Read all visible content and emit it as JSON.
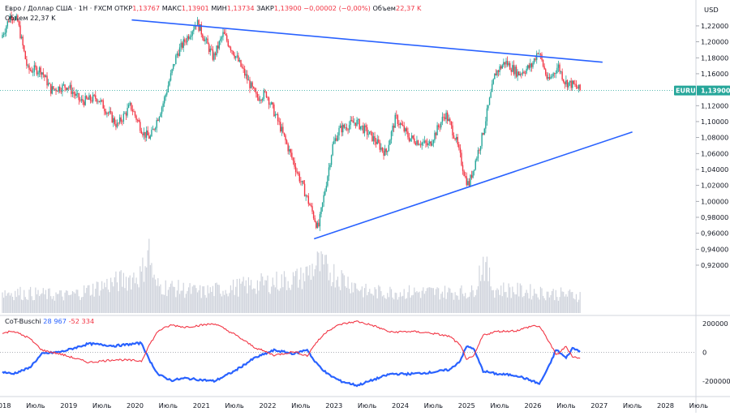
{
  "header": {
    "symbol_line": "Евро / Доллар США · 1Н · FXCM",
    "ohlc": {
      "open_label": "ОТКР",
      "open": "1,13767",
      "high_label": "МАКС",
      "high": "1,13901",
      "low_label": "МИН",
      "low": "1,13734",
      "close_label": "ЗАКР",
      "close": "1,13900",
      "change": "−0,00002 (−0,00%)",
      "volume_label": "Объем",
      "volume": "22,37 K"
    },
    "volume_row": "Объем  22,37 K"
  },
  "price_axis": {
    "currency": "USD",
    "ticks": [
      "1,22000",
      "1,20000",
      "1,18000",
      "1,16000",
      "1,14000",
      "1,12000",
      "1,10000",
      "1,08000",
      "1,06000",
      "1,04000",
      "1,02000",
      "1,00000",
      "0,98000",
      "0,96000",
      "0,94000",
      "0,92000"
    ],
    "last_symbol": "EURUSD",
    "last_price": "1,13900"
  },
  "indicator": {
    "name": "CoT-Buschi",
    "value_blue": "28 967",
    "value_red": "-52 334",
    "ticks": [
      "200000",
      "0",
      "-200000"
    ]
  },
  "time_axis": [
    "2018",
    "Июль",
    "2019",
    "Июль",
    "2020",
    "Июль",
    "2021",
    "Июль",
    "2022",
    "Июль",
    "2023",
    "Июль",
    "2024",
    "Июль",
    "2025",
    "Июль",
    "2026",
    "Июль",
    "2027",
    "Июль",
    "2028",
    "Июль"
  ],
  "colors": {
    "up": "#26a69a",
    "down": "#f23645",
    "trendline": "#2962ff",
    "cot_blue": "#2962ff",
    "cot_red": "#f23645",
    "price_tag": "#26a69a"
  },
  "chart_data": [
    {
      "type": "candlestick",
      "title": "Евро / Доллар США · 1Н · FXCM",
      "ylim": [
        0.905,
        1.235
      ],
      "x_ticks": [
        "2018",
        "Июль",
        "2019",
        "Июль",
        "2020",
        "Июль",
        "2021",
        "Июль",
        "2022",
        "Июль",
        "2023",
        "Июль",
        "2024",
        "Июль",
        "2025",
        "Июль",
        "2026",
        "Июль",
        "2027",
        "Июль",
        "2028",
        "Июль"
      ],
      "price_path": [
        [
          2018.0,
          1.205
        ],
        [
          2018.15,
          1.235
        ],
        [
          2018.25,
          1.225
        ],
        [
          2018.4,
          1.165
        ],
        [
          2018.6,
          1.165
        ],
        [
          2018.75,
          1.14
        ],
        [
          2019.0,
          1.145
        ],
        [
          2019.2,
          1.125
        ],
        [
          2019.45,
          1.13
        ],
        [
          2019.75,
          1.095
        ],
        [
          2019.95,
          1.12
        ],
        [
          2020.15,
          1.085
        ],
        [
          2020.25,
          1.08
        ],
        [
          2020.45,
          1.125
        ],
        [
          2020.65,
          1.185
        ],
        [
          2020.95,
          1.225
        ],
        [
          2021.2,
          1.18
        ],
        [
          2021.35,
          1.21
        ],
        [
          2021.55,
          1.18
        ],
        [
          2021.85,
          1.13
        ],
        [
          2022.0,
          1.135
        ],
        [
          2022.2,
          1.095
        ],
        [
          2022.45,
          1.04
        ],
        [
          2022.7,
          0.985
        ],
        [
          2022.78,
          0.965
        ],
        [
          2023.0,
          1.07
        ],
        [
          2023.1,
          1.09
        ],
        [
          2023.35,
          1.1
        ],
        [
          2023.6,
          1.08
        ],
        [
          2023.8,
          1.06
        ],
        [
          2023.95,
          1.105
        ],
        [
          2024.15,
          1.08
        ],
        [
          2024.45,
          1.07
        ],
        [
          2024.7,
          1.11
        ],
        [
          2024.85,
          1.08
        ],
        [
          2025.0,
          1.03
        ],
        [
          2025.05,
          1.02
        ],
        [
          2025.25,
          1.08
        ],
        [
          2025.45,
          1.16
        ],
        [
          2025.6,
          1.175
        ],
        [
          2025.8,
          1.16
        ],
        [
          2026.0,
          1.17
        ],
        [
          2026.1,
          1.19
        ],
        [
          2026.25,
          1.15
        ],
        [
          2026.4,
          1.17
        ],
        [
          2026.5,
          1.15
        ],
        [
          2026.65,
          1.145
        ],
        [
          2026.73,
          1.139
        ]
      ],
      "volume_path": [
        [
          2018.0,
          0.3
        ],
        [
          2019.0,
          0.25
        ],
        [
          2020.1,
          0.55
        ],
        [
          2020.2,
          0.95
        ],
        [
          2020.3,
          0.4
        ],
        [
          2021.0,
          0.3
        ],
        [
          2022.5,
          0.5
        ],
        [
          2022.75,
          0.7
        ],
        [
          2023.5,
          0.3
        ],
        [
          2025.1,
          0.3
        ],
        [
          2025.25,
          0.75
        ],
        [
          2025.4,
          0.35
        ],
        [
          2026.7,
          0.25
        ]
      ],
      "last_price": 1.139,
      "trendlines": [
        {
          "name": "resistance",
          "from": [
            2019.95,
            1.2275
          ],
          "to": [
            2027.05,
            1.1745
          ]
        },
        {
          "name": "support",
          "from": [
            2022.7,
            0.953
          ],
          "to": [
            2027.5,
            1.087
          ]
        }
      ]
    },
    {
      "type": "line",
      "title": "CoT-Buschi",
      "ylim": [
        -300000,
        270000
      ],
      "y_ticks": [
        200000,
        0,
        -200000
      ],
      "series": [
        {
          "name": "28 967",
          "color": "#2962ff",
          "points": [
            [
              2018.0,
              -135000
            ],
            [
              2018.15,
              -150000
            ],
            [
              2018.4,
              -110000
            ],
            [
              2018.6,
              -10000
            ],
            [
              2018.9,
              5000
            ],
            [
              2019.3,
              60000
            ],
            [
              2019.7,
              45000
            ],
            [
              2020.1,
              65000
            ],
            [
              2020.2,
              -40000
            ],
            [
              2020.35,
              -155000
            ],
            [
              2020.55,
              -195000
            ],
            [
              2020.75,
              -180000
            ],
            [
              2021.2,
              -200000
            ],
            [
              2021.5,
              -130000
            ],
            [
              2021.8,
              -40000
            ],
            [
              2022.1,
              15000
            ],
            [
              2022.4,
              -10000
            ],
            [
              2022.6,
              20000
            ],
            [
              2022.7,
              -60000
            ],
            [
              2022.9,
              -150000
            ],
            [
              2023.1,
              -200000
            ],
            [
              2023.35,
              -230000
            ],
            [
              2023.6,
              -190000
            ],
            [
              2023.85,
              -150000
            ],
            [
              2024.15,
              -150000
            ],
            [
              2024.45,
              -140000
            ],
            [
              2024.75,
              -120000
            ],
            [
              2024.9,
              -60000
            ],
            [
              2025.0,
              40000
            ],
            [
              2025.1,
              30000
            ],
            [
              2025.25,
              -130000
            ],
            [
              2025.45,
              -150000
            ],
            [
              2025.75,
              -160000
            ],
            [
              2026.0,
              -200000
            ],
            [
              2026.1,
              -220000
            ],
            [
              2026.25,
              -90000
            ],
            [
              2026.35,
              20000
            ],
            [
              2026.5,
              -40000
            ],
            [
              2026.6,
              30000
            ],
            [
              2026.7,
              10000
            ],
            [
              2026.73,
              28967
            ]
          ]
        },
        {
          "name": "-52 334",
          "color": "#f23645",
          "points": [
            [
              2018.0,
              130000
            ],
            [
              2018.15,
              150000
            ],
            [
              2018.4,
              100000
            ],
            [
              2018.6,
              15000
            ],
            [
              2018.9,
              -15000
            ],
            [
              2019.3,
              -70000
            ],
            [
              2019.7,
              -50000
            ],
            [
              2020.1,
              -60000
            ],
            [
              2020.2,
              40000
            ],
            [
              2020.35,
              150000
            ],
            [
              2020.55,
              190000
            ],
            [
              2020.75,
              175000
            ],
            [
              2021.2,
              200000
            ],
            [
              2021.5,
              125000
            ],
            [
              2021.8,
              35000
            ],
            [
              2022.1,
              -20000
            ],
            [
              2022.4,
              5000
            ],
            [
              2022.6,
              -25000
            ],
            [
              2022.7,
              50000
            ],
            [
              2022.9,
              150000
            ],
            [
              2023.1,
              195000
            ],
            [
              2023.35,
              215000
            ],
            [
              2023.6,
              185000
            ],
            [
              2023.85,
              140000
            ],
            [
              2024.15,
              145000
            ],
            [
              2024.45,
              135000
            ],
            [
              2024.75,
              110000
            ],
            [
              2024.9,
              50000
            ],
            [
              2025.0,
              -45000
            ],
            [
              2025.1,
              -35000
            ],
            [
              2025.25,
              120000
            ],
            [
              2025.45,
              145000
            ],
            [
              2025.75,
              150000
            ],
            [
              2026.0,
              185000
            ],
            [
              2026.1,
              180000
            ],
            [
              2026.25,
              70000
            ],
            [
              2026.35,
              -20000
            ],
            [
              2026.5,
              40000
            ],
            [
              2026.6,
              -30000
            ],
            [
              2026.7,
              -40000
            ],
            [
              2026.73,
              -52334
            ]
          ]
        }
      ]
    }
  ]
}
